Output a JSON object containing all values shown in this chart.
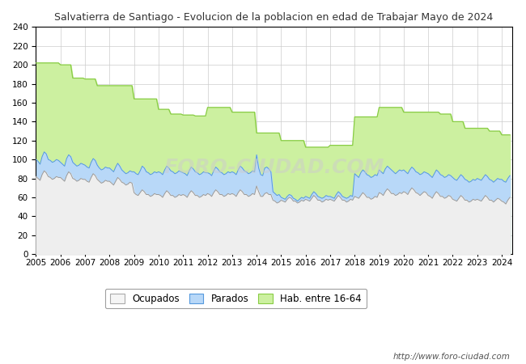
{
  "title": "Salvatierra de Santiago - Evolucion de la poblacion en edad de Trabajar Mayo de 2024",
  "title_color": "#333333",
  "title_bg": "#ffffff",
  "footer_text": "http://www.foro-ciudad.com",
  "watermark": "FORO-CIUDAD.COM",
  "legend_labels": [
    "Ocupados",
    "Parados",
    "Hab. entre 16-64"
  ],
  "colors": {
    "hab_fill": "#ccf0a0",
    "hab_line": "#88cc44",
    "parados_fill": "#b8d8f8",
    "parados_line": "#5599dd",
    "ocupados_fill": "#eeeeee",
    "ocupados_line": "#999999",
    "grid": "#cccccc",
    "bg_plot": "#ffffff",
    "bg_figure": "#ffffff"
  },
  "ylim": [
    0,
    240
  ],
  "yticks": [
    0,
    20,
    40,
    60,
    80,
    100,
    120,
    140,
    160,
    180,
    200,
    220,
    240
  ],
  "hab_y": [
    202,
    202,
    202,
    202,
    202,
    202,
    202,
    202,
    202,
    202,
    202,
    202,
    200,
    200,
    200,
    200,
    200,
    200,
    186,
    186,
    186,
    186,
    186,
    186,
    185,
    185,
    185,
    185,
    185,
    185,
    178,
    178,
    178,
    178,
    178,
    178,
    178,
    178,
    178,
    178,
    178,
    178,
    178,
    178,
    178,
    178,
    178,
    178,
    164,
    164,
    164,
    164,
    164,
    164,
    164,
    164,
    164,
    164,
    164,
    164,
    153,
    153,
    153,
    153,
    153,
    153,
    148,
    148,
    148,
    148,
    148,
    148,
    147,
    147,
    147,
    147,
    147,
    147,
    146,
    146,
    146,
    146,
    146,
    146,
    155,
    155,
    155,
    155,
    155,
    155,
    155,
    155,
    155,
    155,
    155,
    155,
    150,
    150,
    150,
    150,
    150,
    150,
    150,
    150,
    150,
    150,
    150,
    150,
    128,
    128,
    128,
    128,
    128,
    128,
    128,
    128,
    128,
    128,
    128,
    128,
    120,
    120,
    120,
    120,
    120,
    120,
    120,
    120,
    120,
    120,
    120,
    120,
    113,
    113,
    113,
    113,
    113,
    113,
    113,
    113,
    113,
    113,
    113,
    113,
    115,
    115,
    115,
    115,
    115,
    115,
    115,
    115,
    115,
    115,
    115,
    115,
    145,
    145,
    145,
    145,
    145,
    145,
    145,
    145,
    145,
    145,
    145,
    145,
    155,
    155,
    155,
    155,
    155,
    155,
    155,
    155,
    155,
    155,
    155,
    155,
    150,
    150,
    150,
    150,
    150,
    150,
    150,
    150,
    150,
    150,
    150,
    150,
    150,
    150,
    150,
    150,
    150,
    150,
    148,
    148,
    148,
    148,
    148,
    148,
    140,
    140,
    140,
    140,
    140,
    140,
    133,
    133,
    133,
    133,
    133,
    133,
    133,
    133,
    133,
    133,
    133,
    133,
    130,
    130,
    130,
    130,
    130,
    130,
    126,
    126,
    126,
    126,
    126
  ],
  "par_y": [
    100,
    98,
    95,
    103,
    108,
    106,
    100,
    99,
    97,
    98,
    100,
    99,
    97,
    95,
    93,
    101,
    105,
    103,
    97,
    95,
    93,
    94,
    96,
    95,
    94,
    92,
    91,
    97,
    101,
    99,
    94,
    91,
    89,
    90,
    92,
    91,
    91,
    89,
    87,
    92,
    96,
    93,
    89,
    87,
    85,
    86,
    88,
    87,
    87,
    85,
    84,
    88,
    93,
    91,
    87,
    86,
    84,
    85,
    87,
    86,
    87,
    86,
    84,
    89,
    93,
    91,
    88,
    87,
    85,
    86,
    88,
    87,
    86,
    85,
    83,
    88,
    92,
    90,
    87,
    86,
    84,
    85,
    87,
    86,
    86,
    85,
    83,
    88,
    92,
    90,
    87,
    86,
    84,
    85,
    87,
    86,
    87,
    86,
    84,
    89,
    93,
    91,
    88,
    87,
    85,
    86,
    88,
    87,
    105,
    91,
    84,
    83,
    91,
    92,
    90,
    87,
    66,
    64,
    62,
    63,
    60,
    59,
    58,
    61,
    63,
    62,
    59,
    58,
    56,
    58,
    60,
    59,
    61,
    60,
    59,
    63,
    66,
    64,
    61,
    60,
    59,
    60,
    62,
    61,
    61,
    60,
    59,
    63,
    66,
    64,
    61,
    60,
    59,
    60,
    62,
    61,
    85,
    83,
    81,
    86,
    89,
    87,
    84,
    83,
    81,
    82,
    84,
    83,
    89,
    87,
    85,
    90,
    93,
    91,
    89,
    87,
    85,
    87,
    89,
    88,
    89,
    87,
    85,
    89,
    92,
    90,
    87,
    86,
    84,
    85,
    87,
    86,
    85,
    83,
    81,
    85,
    89,
    87,
    84,
    83,
    81,
    82,
    84,
    83,
    81,
    79,
    78,
    81,
    84,
    82,
    79,
    78,
    76,
    77,
    79,
    78,
    80,
    79,
    78,
    81,
    84,
    82,
    79,
    78,
    76,
    78,
    80,
    79,
    79,
    77,
    76,
    80,
    83
  ],
  "ocu_y": [
    82,
    80,
    78,
    84,
    88,
    86,
    82,
    81,
    79,
    80,
    82,
    81,
    81,
    79,
    77,
    83,
    87,
    85,
    80,
    79,
    77,
    78,
    80,
    79,
    79,
    77,
    76,
    81,
    85,
    83,
    79,
    77,
    75,
    76,
    78,
    77,
    77,
    75,
    73,
    77,
    81,
    79,
    76,
    75,
    73,
    74,
    76,
    75,
    65,
    63,
    62,
    65,
    68,
    66,
    63,
    63,
    61,
    62,
    64,
    63,
    63,
    62,
    60,
    64,
    67,
    65,
    62,
    62,
    60,
    61,
    63,
    62,
    63,
    62,
    60,
    64,
    67,
    65,
    62,
    62,
    60,
    61,
    63,
    62,
    64,
    63,
    61,
    65,
    68,
    66,
    63,
    63,
    61,
    62,
    64,
    63,
    64,
    63,
    61,
    65,
    68,
    66,
    63,
    63,
    61,
    62,
    64,
    63,
    72,
    66,
    61,
    61,
    64,
    65,
    63,
    63,
    57,
    56,
    54,
    55,
    57,
    56,
    55,
    58,
    60,
    59,
    56,
    56,
    54,
    55,
    57,
    56,
    58,
    57,
    56,
    59,
    62,
    60,
    57,
    57,
    55,
    56,
    58,
    57,
    58,
    57,
    56,
    59,
    62,
    60,
    57,
    57,
    55,
    56,
    58,
    57,
    61,
    60,
    59,
    62,
    65,
    63,
    60,
    60,
    58,
    59,
    61,
    60,
    65,
    64,
    62,
    66,
    69,
    67,
    64,
    64,
    62,
    63,
    65,
    64,
    66,
    65,
    63,
    67,
    70,
    68,
    65,
    64,
    62,
    64,
    66,
    65,
    62,
    61,
    59,
    63,
    66,
    64,
    61,
    61,
    59,
    60,
    62,
    61,
    58,
    57,
    56,
    59,
    62,
    60,
    57,
    57,
    55,
    56,
    58,
    57,
    58,
    57,
    56,
    59,
    62,
    60,
    57,
    57,
    55,
    57,
    59,
    58,
    56,
    55,
    53,
    57,
    60
  ]
}
